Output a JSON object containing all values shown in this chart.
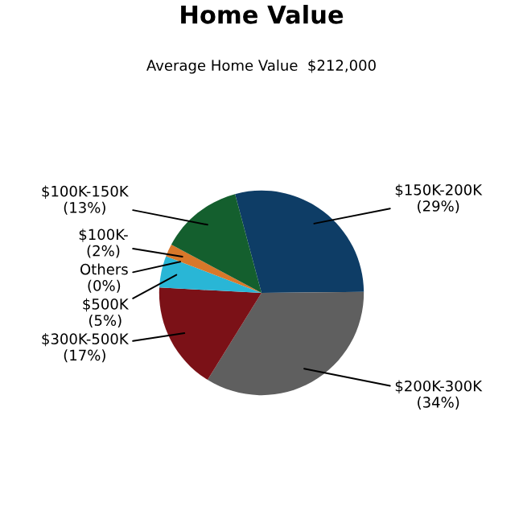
{
  "chart_data": {
    "type": "pie",
    "title": "Home Value",
    "subtitle": "Average Home Value  $212,000",
    "categories": [
      "$150K-200K",
      "$200K-300K",
      "$300K-500K",
      "$500K",
      "Others",
      "$100K-",
      "$100K-150K"
    ],
    "values": [
      29,
      34,
      17,
      5,
      0,
      2,
      13
    ],
    "value_labels": [
      "(29%)",
      "(34%)",
      "(17%)",
      "(5%)",
      "(0%)",
      "(2%)",
      "(13%)"
    ],
    "colors": [
      "#0e3d66",
      "#5f5f5f",
      "#7b1117",
      "#29b6d6",
      "#b0b0b0",
      "#d8782a",
      "#145f2e"
    ]
  }
}
